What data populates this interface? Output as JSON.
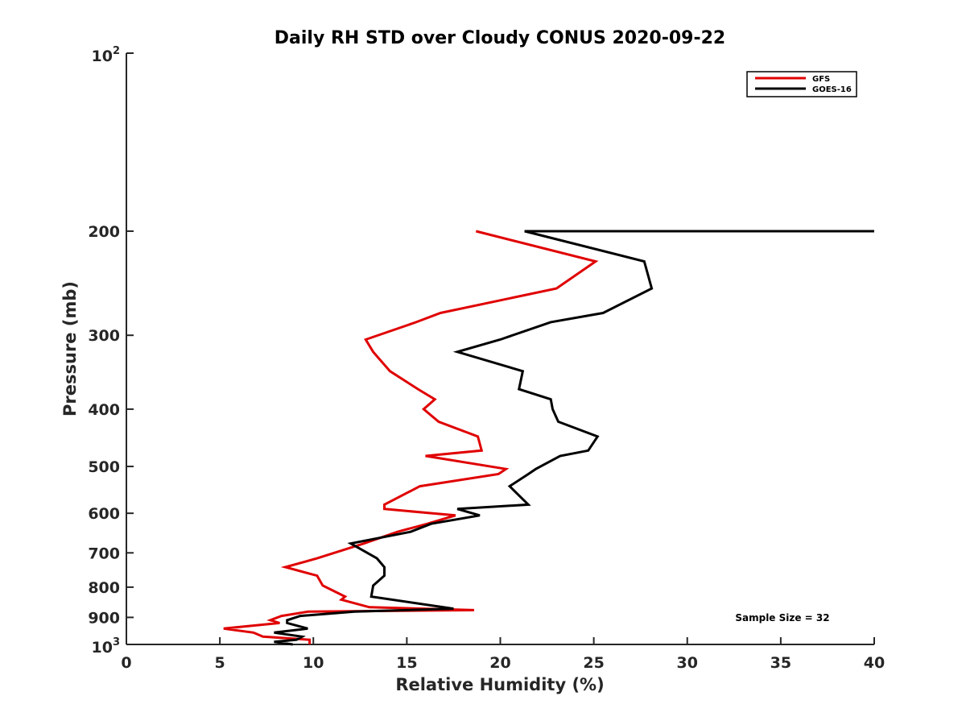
{
  "chart_data": {
    "type": "line",
    "title": "Daily RH STD over Cloudy CONUS 2020-09-22",
    "xlabel": "Relative Humidity (%)",
    "ylabel": "Pressure (mb)",
    "xlim": [
      0,
      40
    ],
    "ylim": [
      100,
      1000
    ],
    "y_scale": "log",
    "y_reversed": true,
    "grid": false,
    "legend_position": "top-right",
    "x_ticks": [
      "0",
      "5",
      "10",
      "15",
      "20",
      "25",
      "30",
      "35",
      "40"
    ],
    "y_ticks": [
      {
        "value": 100,
        "base": "10",
        "exp": "2"
      },
      {
        "value": 200,
        "label": "200"
      },
      {
        "value": 300,
        "label": "300"
      },
      {
        "value": 400,
        "label": "400"
      },
      {
        "value": 500,
        "label": "500"
      },
      {
        "value": 600,
        "label": "600"
      },
      {
        "value": 700,
        "label": "700"
      },
      {
        "value": 800,
        "label": "800"
      },
      {
        "value": 900,
        "label": "900"
      },
      {
        "value": 1000,
        "base": "10",
        "exp": "3"
      }
    ],
    "annotation": "Sample Size = 32",
    "series": [
      {
        "name": "GFS",
        "color": "#e00000",
        "points": [
          [
            18.7,
            200
          ],
          [
            25.1,
            225
          ],
          [
            23.0,
            250
          ],
          [
            16.8,
            275
          ],
          [
            15.5,
            285
          ],
          [
            12.8,
            305
          ],
          [
            13.2,
            320
          ],
          [
            14.1,
            345
          ],
          [
            15.6,
            370
          ],
          [
            16.5,
            385
          ],
          [
            15.9,
            400
          ],
          [
            16.7,
            420
          ],
          [
            18.8,
            445
          ],
          [
            19.0,
            470
          ],
          [
            16.0,
            480
          ],
          [
            20.3,
            505
          ],
          [
            19.9,
            515
          ],
          [
            15.7,
            540
          ],
          [
            13.8,
            580
          ],
          [
            13.8,
            590
          ],
          [
            17.6,
            605
          ],
          [
            16.1,
            625
          ],
          [
            14.5,
            645
          ],
          [
            12.7,
            675
          ],
          [
            10.2,
            715
          ],
          [
            8.5,
            740
          ],
          [
            10.2,
            765
          ],
          [
            10.5,
            795
          ],
          [
            11.7,
            830
          ],
          [
            11.5,
            840
          ],
          [
            13.0,
            865
          ],
          [
            18.6,
            875
          ],
          [
            9.7,
            880
          ],
          [
            8.3,
            895
          ],
          [
            7.7,
            910
          ],
          [
            8.2,
            920
          ],
          [
            5.2,
            940
          ],
          [
            6.8,
            955
          ],
          [
            7.3,
            970
          ],
          [
            9.8,
            982
          ],
          [
            9.8,
            1000
          ]
        ]
      },
      {
        "name": "GOES-16",
        "color": "#000000",
        "points": [
          [
            40.0,
            200
          ],
          [
            21.3,
            200
          ],
          [
            27.7,
            225
          ],
          [
            28.1,
            250
          ],
          [
            25.5,
            275
          ],
          [
            22.7,
            285
          ],
          [
            20.0,
            305
          ],
          [
            17.7,
            320
          ],
          [
            21.2,
            345
          ],
          [
            21.0,
            370
          ],
          [
            22.7,
            385
          ],
          [
            22.8,
            400
          ],
          [
            23.1,
            420
          ],
          [
            25.2,
            445
          ],
          [
            24.7,
            470
          ],
          [
            23.2,
            480
          ],
          [
            21.9,
            505
          ],
          [
            21.5,
            515
          ],
          [
            20.5,
            540
          ],
          [
            21.5,
            580
          ],
          [
            17.7,
            590
          ],
          [
            18.9,
            605
          ],
          [
            16.3,
            625
          ],
          [
            15.2,
            645
          ],
          [
            12.0,
            675
          ],
          [
            13.4,
            715
          ],
          [
            13.8,
            740
          ],
          [
            13.8,
            765
          ],
          [
            13.2,
            795
          ],
          [
            13.1,
            830
          ],
          [
            17.5,
            870
          ],
          [
            12.2,
            880
          ],
          [
            9.3,
            895
          ],
          [
            8.6,
            910
          ],
          [
            8.6,
            920
          ],
          [
            9.7,
            940
          ],
          [
            7.9,
            955
          ],
          [
            9.4,
            970
          ],
          [
            9.1,
            982
          ],
          [
            7.9,
            990
          ],
          [
            8.9,
            1000
          ]
        ]
      }
    ]
  }
}
